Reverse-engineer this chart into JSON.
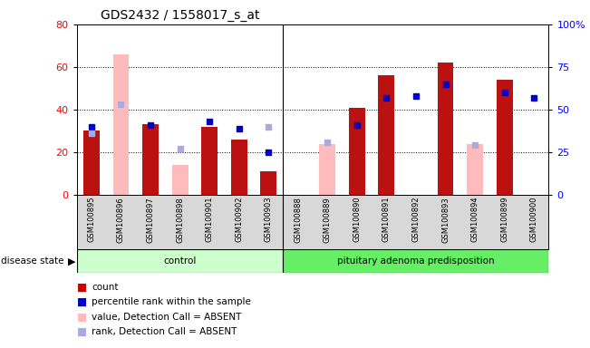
{
  "title": "GDS2432 / 1558017_s_at",
  "samples": [
    "GSM100895",
    "GSM100896",
    "GSM100897",
    "GSM100898",
    "GSM100901",
    "GSM100902",
    "GSM100903",
    "GSM100888",
    "GSM100889",
    "GSM100890",
    "GSM100891",
    "GSM100892",
    "GSM100893",
    "GSM100894",
    "GSM100899",
    "GSM100900"
  ],
  "count_values": [
    30,
    0,
    33,
    0,
    32,
    26,
    11,
    0,
    0,
    41,
    56,
    0,
    62,
    0,
    54,
    0
  ],
  "count_absent_values": [
    0,
    66,
    0,
    14,
    0,
    0,
    0,
    0,
    24,
    0,
    0,
    0,
    0,
    24,
    0,
    0
  ],
  "percentile_values": [
    40,
    0,
    41,
    0,
    43,
    39,
    25,
    0,
    0,
    41,
    57,
    58,
    65,
    0,
    60,
    57
  ],
  "percentile_absent_values": [
    0,
    53,
    0,
    0,
    0,
    0,
    0,
    0,
    0,
    0,
    0,
    0,
    0,
    0,
    0,
    0
  ],
  "rank_absent_values": [
    36,
    0,
    0,
    27,
    0,
    0,
    40,
    0,
    31,
    0,
    0,
    0,
    0,
    29,
    0,
    0
  ],
  "control_count": 7,
  "disease_count": 9,
  "control_label": "control",
  "disease_label": "pituitary adenoma predisposition",
  "ylim_left": [
    0,
    80
  ],
  "ylim_right": [
    0,
    100
  ],
  "yticks_left": [
    0,
    20,
    40,
    60,
    80
  ],
  "yticks_right": [
    0,
    25,
    50,
    75,
    100
  ],
  "bar_color_red": "#bb1111",
  "bar_color_pink": "#ffbbbb",
  "dot_color_blue": "#0000cc",
  "dot_color_lightblue": "#aaaadd",
  "bg_color": "#d8d8d8",
  "control_bg": "#ccffcc",
  "disease_bg": "#66ee66",
  "legend_square_red": "#cc0000",
  "legend_square_blue": "#0000cc",
  "legend_square_pink": "#ffbbbb",
  "legend_square_lightblue": "#aaaadd"
}
